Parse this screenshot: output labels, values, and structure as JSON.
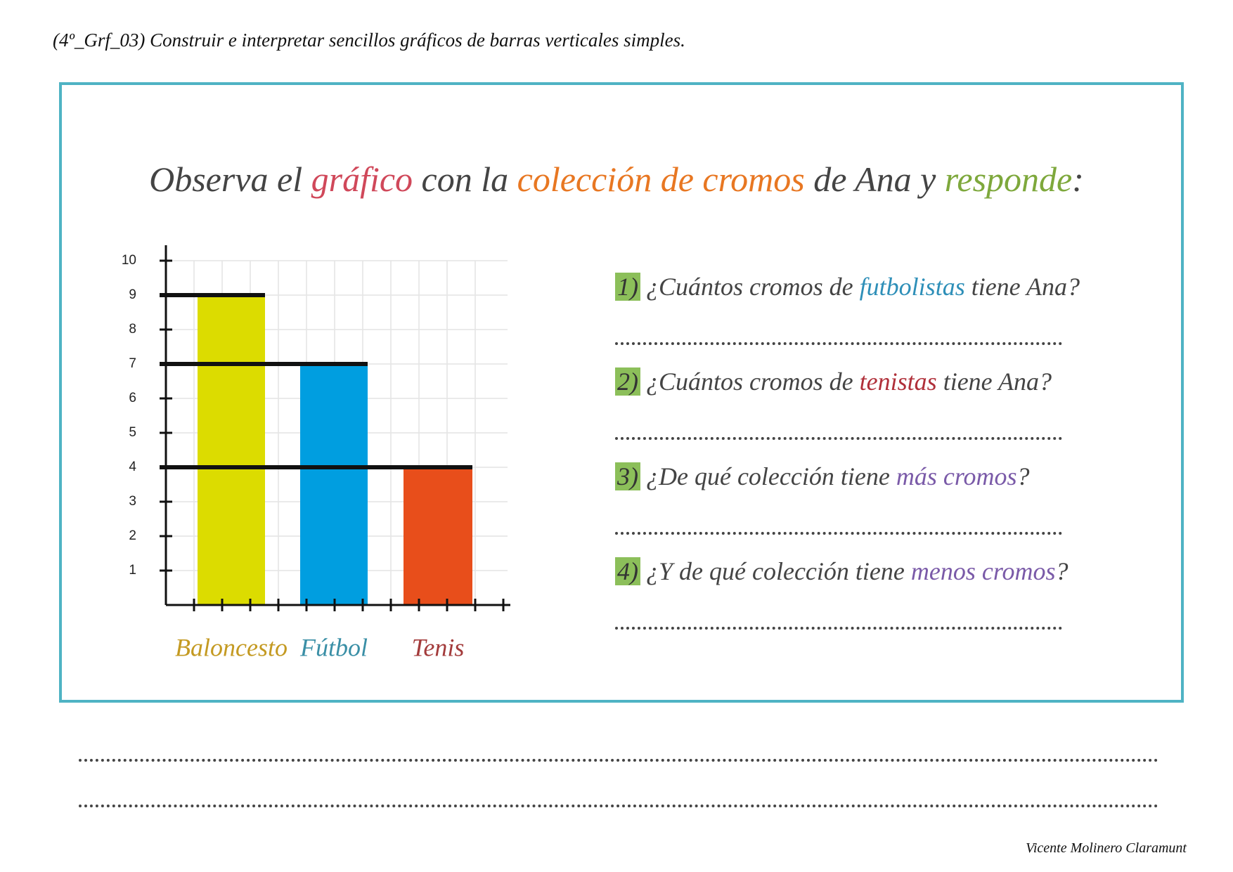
{
  "header": "(4º_Grf_03) Construir e interpretar sencillos gráficos de barras verticales simples.",
  "title": {
    "segments": [
      {
        "text": "Observa el ",
        "color": "#444444"
      },
      {
        "text": "gráfico",
        "color": "#d0485a"
      },
      {
        "text": " con la ",
        "color": "#444444"
      },
      {
        "text": "colección de cromos",
        "color": "#e87722"
      },
      {
        "text": " de Ana y ",
        "color": "#444444"
      },
      {
        "text": "responde",
        "color": "#7ea83c"
      },
      {
        "text": ":",
        "color": "#444444"
      }
    ]
  },
  "chart_data": {
    "type": "bar",
    "categories": [
      "Baloncesto",
      "Fútbol",
      "Tenis"
    ],
    "values": [
      9,
      7,
      4
    ],
    "colors": [
      "#dcdc00",
      "#009ee0",
      "#e84e1b"
    ],
    "category_colors": [
      "#c49a22",
      "#3a8fa6",
      "#a33b3b"
    ],
    "ylim": [
      0,
      10
    ],
    "yticks": [
      1,
      2,
      3,
      4,
      5,
      6,
      7,
      8,
      9,
      10
    ],
    "grid": true
  },
  "questions": [
    {
      "number": "1)",
      "segments": [
        {
          "text": "¿Cuántos cromos de ",
          "color": "#444444"
        },
        {
          "text": "futbolistas",
          "color": "#2e8fb8"
        },
        {
          "text": " tiene Ana?",
          "color": "#444444"
        }
      ]
    },
    {
      "number": "2)",
      "segments": [
        {
          "text": "¿Cuántos cromos de ",
          "color": "#444444"
        },
        {
          "text": "tenistas",
          "color": "#b0303a"
        },
        {
          "text": " tiene Ana?",
          "color": "#444444"
        }
      ]
    },
    {
      "number": "3)",
      "segments": [
        {
          "text": "¿De qué colección tiene ",
          "color": "#444444"
        },
        {
          "text": "más cromos",
          "color": "#7a5aa8"
        },
        {
          "text": "?",
          "color": "#444444"
        }
      ]
    },
    {
      "number": "4)",
      "segments": [
        {
          "text": "¿Y de qué colección tiene ",
          "color": "#444444"
        },
        {
          "text": "menos cromos",
          "color": "#7a5aa8"
        },
        {
          "text": "?",
          "color": "#444444"
        }
      ]
    }
  ],
  "author": "Vicente Molinero Claramunt"
}
